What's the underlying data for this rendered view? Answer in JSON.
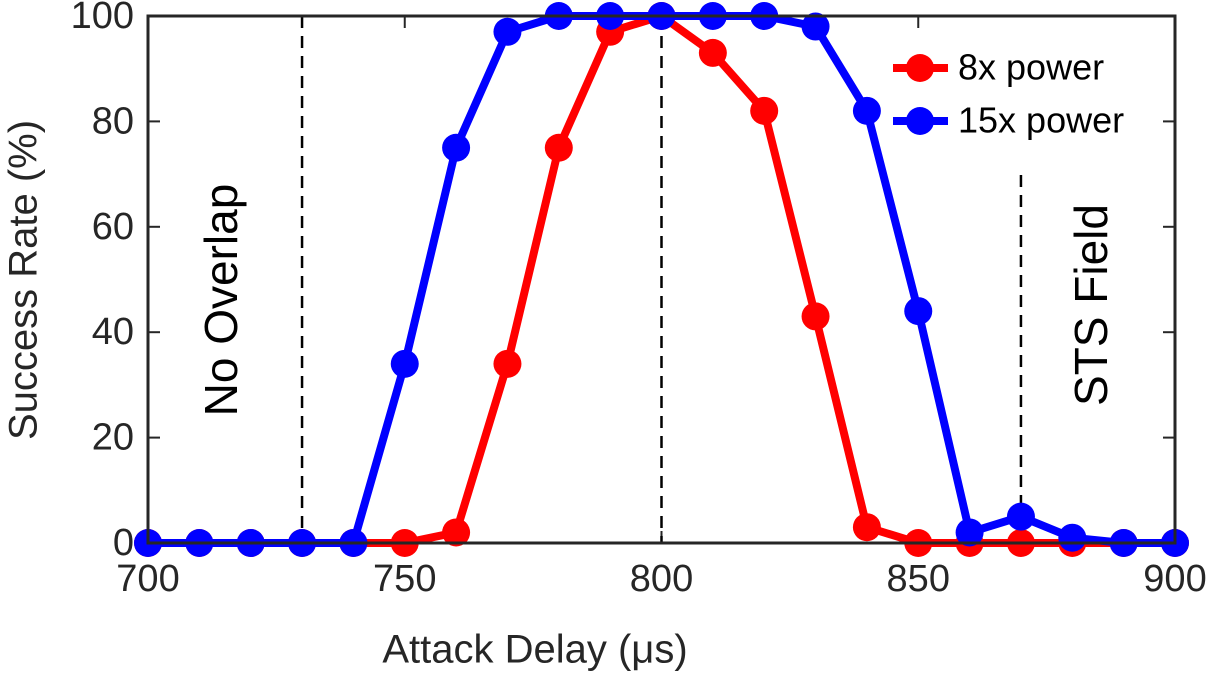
{
  "chart_data": {
    "type": "line",
    "x": [
      700,
      710,
      720,
      730,
      740,
      750,
      760,
      770,
      780,
      790,
      800,
      810,
      820,
      830,
      840,
      850,
      860,
      870,
      880,
      890,
      900
    ],
    "series": [
      {
        "name": "8x power",
        "color": "#ff0000",
        "values": [
          0,
          0,
          0,
          0,
          0,
          0,
          2,
          34,
          75,
          97,
          100,
          93,
          82,
          43,
          3,
          0,
          0,
          0,
          0,
          0,
          0
        ]
      },
      {
        "name": "15x power",
        "color": "#0000ff",
        "values": [
          0,
          0,
          0,
          0,
          0,
          34,
          75,
          97,
          100,
          100,
          100,
          100,
          100,
          98,
          82,
          44,
          2,
          5,
          1,
          0,
          0
        ]
      }
    ],
    "xlabel": "Attack Delay (μs)",
    "ylabel": "Success Rate (%)",
    "xlim": [
      700,
      900
    ],
    "xticks": [
      700,
      750,
      800,
      850,
      900
    ],
    "ylim": [
      0,
      100
    ],
    "yticks": [
      0,
      20,
      40,
      60,
      80,
      100
    ],
    "vlines": [
      730,
      800,
      870
    ],
    "annotations": [
      "No Overlap",
      "STS Field"
    ],
    "legend": "top-right",
    "grid": false
  }
}
